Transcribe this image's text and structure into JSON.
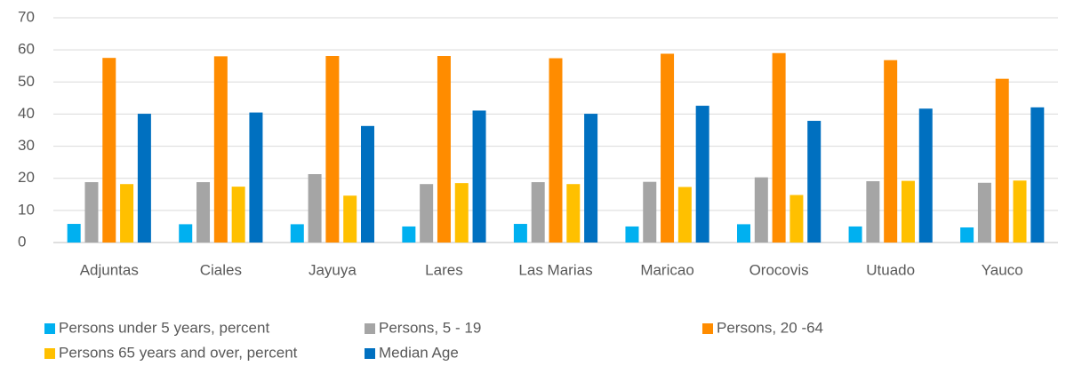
{
  "chart_data": {
    "type": "bar",
    "categories": [
      "Adjuntas",
      "Ciales",
      "Jayuya",
      "Lares",
      "Las Marias",
      "Maricao",
      "Orocovis",
      "Utuado",
      "Yauco"
    ],
    "series": [
      {
        "name": "Persons under 5 years, percent",
        "color": "#00b0f0",
        "values": [
          5.8,
          5.7,
          5.7,
          5.0,
          5.8,
          5.0,
          5.7,
          5.0,
          4.7
        ]
      },
      {
        "name": "Persons, 5 - 19",
        "color": "#a5a5a5",
        "values": [
          18.8,
          18.8,
          21.3,
          18.2,
          18.8,
          18.9,
          20.3,
          19.1,
          18.6
        ]
      },
      {
        "name": "Persons, 20 -64",
        "color": "#ff8c00",
        "values": [
          57.5,
          58.0,
          58.1,
          58.1,
          57.4,
          58.8,
          59.0,
          56.8,
          51.0
        ]
      },
      {
        "name": "Persons 65 years and over, percent",
        "color": "#ffc000",
        "values": [
          18.2,
          17.4,
          14.6,
          18.5,
          18.2,
          17.3,
          14.8,
          19.2,
          19.3
        ]
      },
      {
        "name": "Median Age",
        "color": "#0070c0",
        "values": [
          40.1,
          40.5,
          36.3,
          41.1,
          40.1,
          42.6,
          37.9,
          41.7,
          42.1
        ]
      }
    ],
    "ylim": [
      0,
      70
    ],
    "yticks": [
      0,
      10,
      20,
      30,
      40,
      50,
      60,
      70
    ],
    "grid": true
  }
}
